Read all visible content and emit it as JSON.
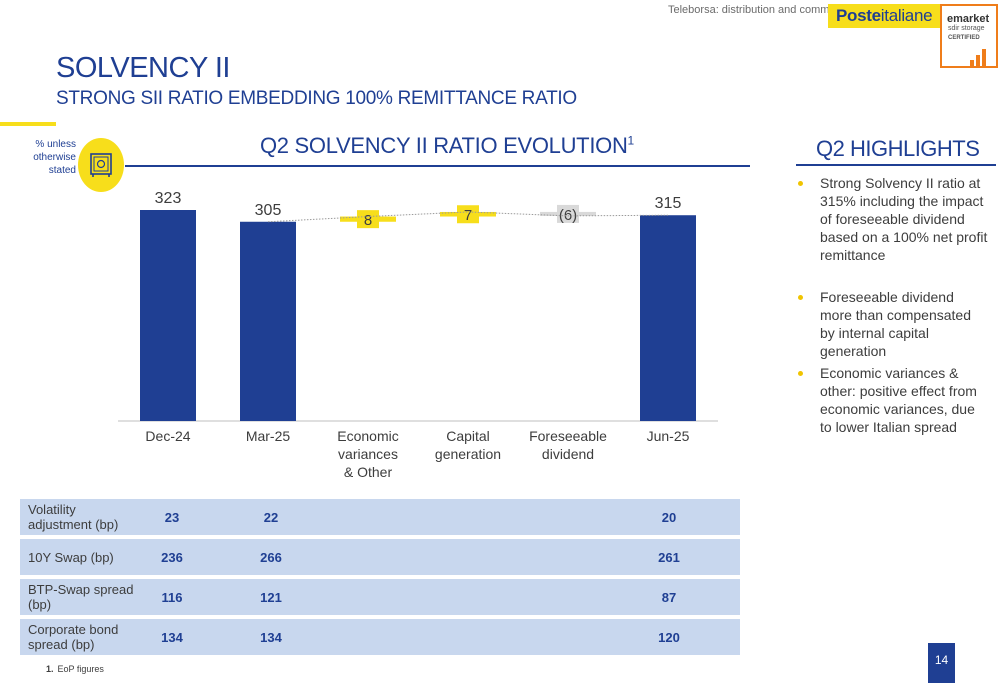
{
  "header": {
    "disclaimer": "Teleborsa: distribution and commercial use strictly prohibited",
    "logo": {
      "brand_bold": "Poste",
      "brand_light": "italiane"
    },
    "badge": {
      "line1": "emarket",
      "line2": "sdir storage",
      "line3": "CERTIFIED"
    }
  },
  "slide": {
    "title": "SOLVENCY II",
    "subtitle": "STRONG SII RATIO EMBEDDING 100% REMITTANCE RATIO",
    "units_note": "% unless otherwise stated",
    "icon": "safe-icon",
    "page_number": "14",
    "footnote_num": "1.",
    "footnote_text": "EoP figures"
  },
  "colors": {
    "brand_blue": "#1f3f93",
    "brand_yellow": "#f7de1b",
    "negative_grey": "#d9d9d9",
    "table_fill": "#c8d7ee"
  },
  "chart_data": {
    "type": "bar",
    "subtype": "waterfall",
    "title": "Q2 SOLVENCY II RATIO EVOLUTION",
    "title_footnote": "1",
    "categories": [
      "Dec-24",
      "Mar-25",
      "Economic variances & Other",
      "Capital generation",
      "Foreseeable dividend",
      "Jun-25"
    ],
    "category_lines": [
      [
        "Dec-24"
      ],
      [
        "Mar-25"
      ],
      [
        "Economic",
        "variances",
        "& Other"
      ],
      [
        "Capital",
        "generation"
      ],
      [
        "Foreseeable",
        "dividend"
      ],
      [
        "Jun-25"
      ]
    ],
    "values": [
      323,
      305,
      8,
      7,
      -6,
      315
    ],
    "value_labels": [
      "323",
      "305",
      "8",
      "7",
      "(6)",
      "315"
    ],
    "kinds": [
      "total",
      "total",
      "delta",
      "delta",
      "delta",
      "total"
    ],
    "ylim": [
      0,
      330
    ]
  },
  "highlights": {
    "title": "Q2 HIGHLIGHTS",
    "items": [
      "Strong Solvency II ratio at 315% including the impact of foreseeable dividend based on a 100% net profit remittance",
      "Foreseeable dividend more than compensated by internal capital generation",
      "Economic variances & other: positive effect from economic variances, due to lower Italian spread"
    ]
  },
  "table": {
    "rows": [
      {
        "label": "Volatility adjustment (bp)",
        "dec24": "23",
        "mar25": "22",
        "jun25": "20"
      },
      {
        "label": "10Y Swap (bp)",
        "dec24": "236",
        "mar25": "266",
        "jun25": "261"
      },
      {
        "label": "BTP-Swap spread (bp)",
        "dec24": "116",
        "mar25": "121",
        "jun25": "87"
      },
      {
        "label": "Corporate bond spread (bp)",
        "dec24": "134",
        "mar25": "134",
        "jun25": "120"
      }
    ]
  }
}
